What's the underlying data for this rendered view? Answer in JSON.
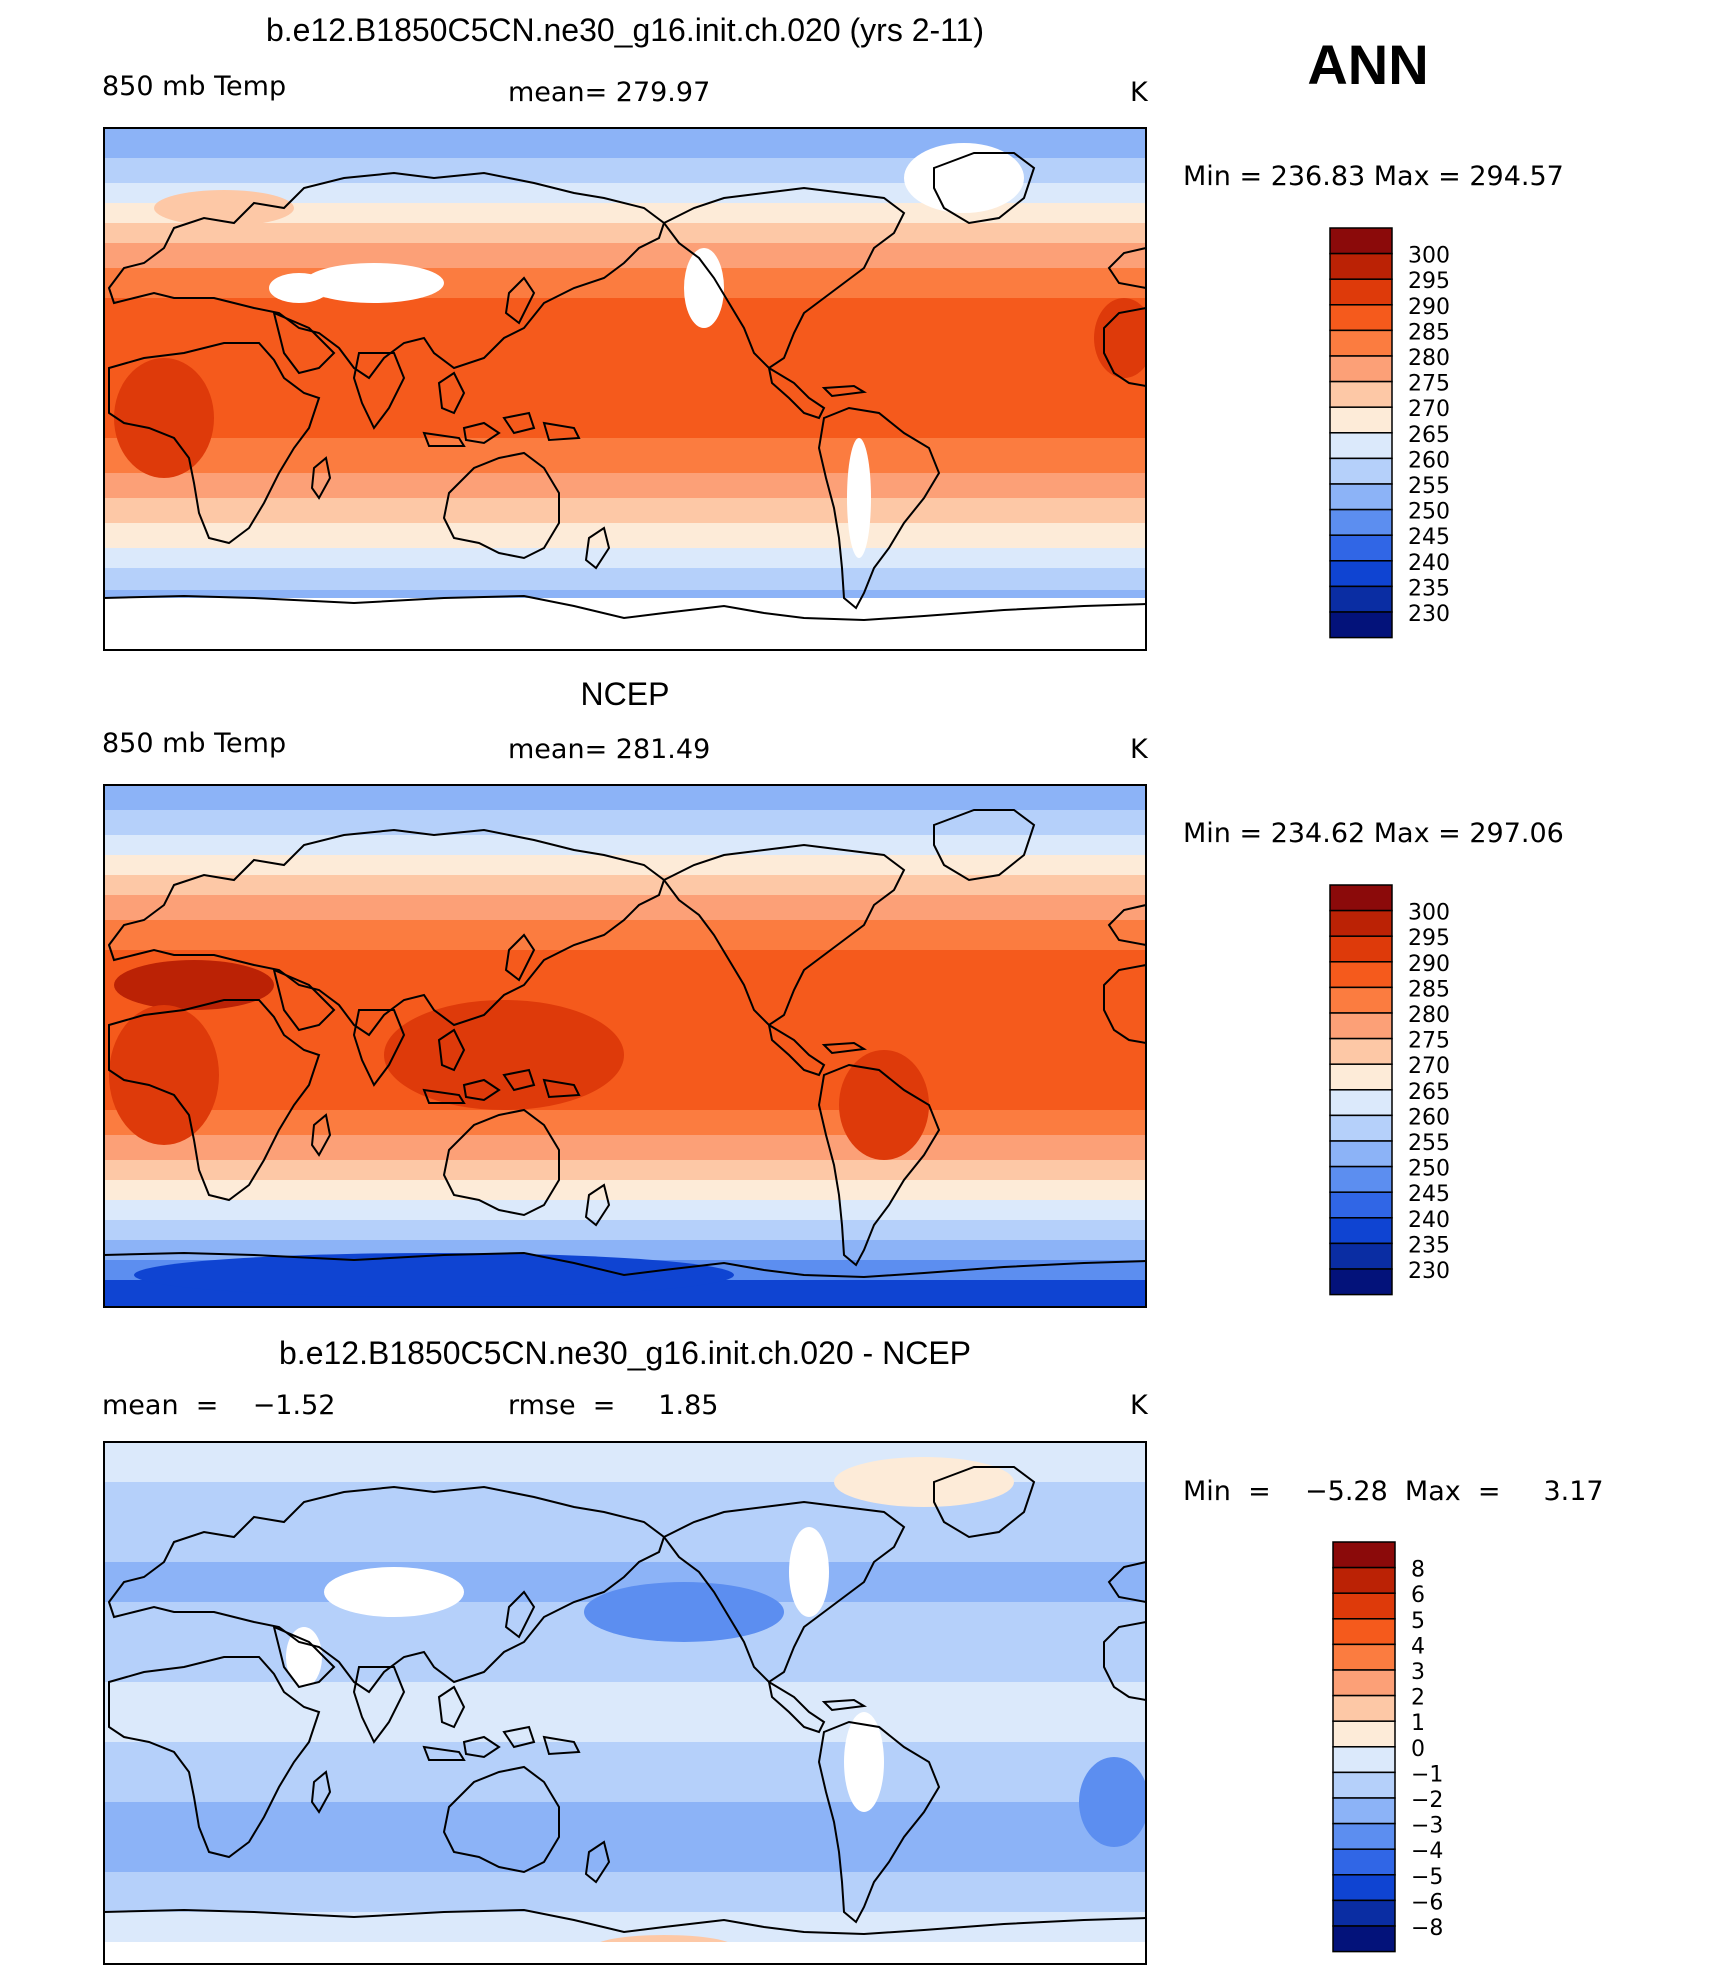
{
  "season": "ANN",
  "panels": [
    {
      "title": "b.e12.B1850C5CN.ne30_g16.init.ch.020 (yrs 2-11)",
      "left_label": "850 mb Temp",
      "center_label": "mean=  279.97",
      "units": "K",
      "min_max": "Min  =  236.83  Max  =  294.57",
      "scale": "absolute",
      "map_variant": "model"
    },
    {
      "title": "NCEP",
      "left_label": "850 mb Temp",
      "center_label": "mean=  281.49",
      "units": "K",
      "min_max": "Min  =  234.62  Max  =  297.06",
      "scale": "absolute",
      "map_variant": "obs"
    },
    {
      "title": "b.e12.B1850C5CN.ne30_g16.init.ch.020 - NCEP",
      "left_label": "mean  =    −1.52",
      "center_label": "rmse  =     1.85",
      "units": "K",
      "min_max": "Min  =    −5.28  Max  =     3.17",
      "scale": "difference",
      "map_variant": "diff"
    }
  ],
  "colorbars": {
    "absolute": {
      "labels": [
        "300",
        "295",
        "290",
        "285",
        "280",
        "275",
        "270",
        "265",
        "260",
        "255",
        "250",
        "245",
        "240",
        "235",
        "230"
      ],
      "colors": [
        "#8b0a0a",
        "#bb2205",
        "#de3a0a",
        "#f55a1c",
        "#fb7c40",
        "#fca077",
        "#fdc8a6",
        "#fdebd8",
        "#dbe9fb",
        "#b5d0fa",
        "#8cb3f7",
        "#5c8ef0",
        "#3066e6",
        "#0f44d2",
        "#0a2da3",
        "#03127a"
      ]
    },
    "difference": {
      "labels": [
        "8",
        "6",
        "5",
        "4",
        "3",
        "2",
        "1",
        "0",
        "−1",
        "−2",
        "−3",
        "−4",
        "−5",
        "−6",
        "−8"
      ],
      "colors": [
        "#8b0a0a",
        "#bb2205",
        "#de3a0a",
        "#f55a1c",
        "#fb7c40",
        "#fca077",
        "#fdc8a6",
        "#fdebd8",
        "#dbe9fb",
        "#b5d0fa",
        "#8cb3f7",
        "#5c8ef0",
        "#3066e6",
        "#0f44d2",
        "#0a2da3",
        "#03127a"
      ]
    }
  }
}
